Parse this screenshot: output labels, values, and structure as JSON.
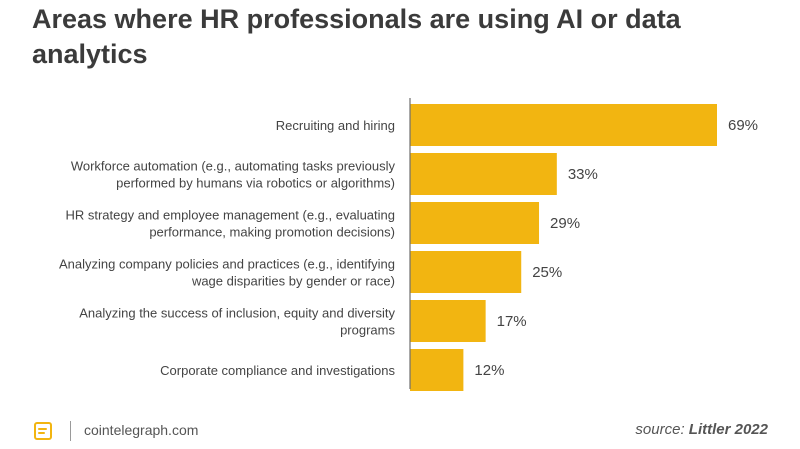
{
  "page": {
    "title": "Areas where HR professionals are using AI or data analytics",
    "site": "cointelegraph.com",
    "source_prefix": "source: ",
    "source_name": "Littler 2022"
  },
  "icons": {
    "logo": "cointelegraph-logo-icon"
  },
  "colors": {
    "bar": "#F2B511",
    "axis": "#6f6f6f",
    "text": "#3b3b3b"
  },
  "chart_data": {
    "type": "bar",
    "orientation": "horizontal",
    "categories": [
      [
        "Recruiting and hiring"
      ],
      [
        "Workforce automation (e.g., automating tasks previously",
        "performed by humans via robotics or algorithms)"
      ],
      [
        "HR strategy and employee management (e.g., evaluating",
        "performance, making promotion decisions)"
      ],
      [
        "Analyzing company policies and practices (e.g., identifying",
        "wage disparities by gender or race)"
      ],
      [
        "Analyzing the success of inclusion, equity and diversity",
        "programs"
      ],
      [
        "Corporate compliance and investigations"
      ]
    ],
    "values": [
      69,
      33,
      29,
      25,
      17,
      12
    ],
    "value_labels": [
      "69%",
      "33%",
      "29%",
      "25%",
      "17%",
      "12%"
    ],
    "unit": "%",
    "xlim": [
      0,
      69
    ],
    "grid": false,
    "legend": "none"
  }
}
